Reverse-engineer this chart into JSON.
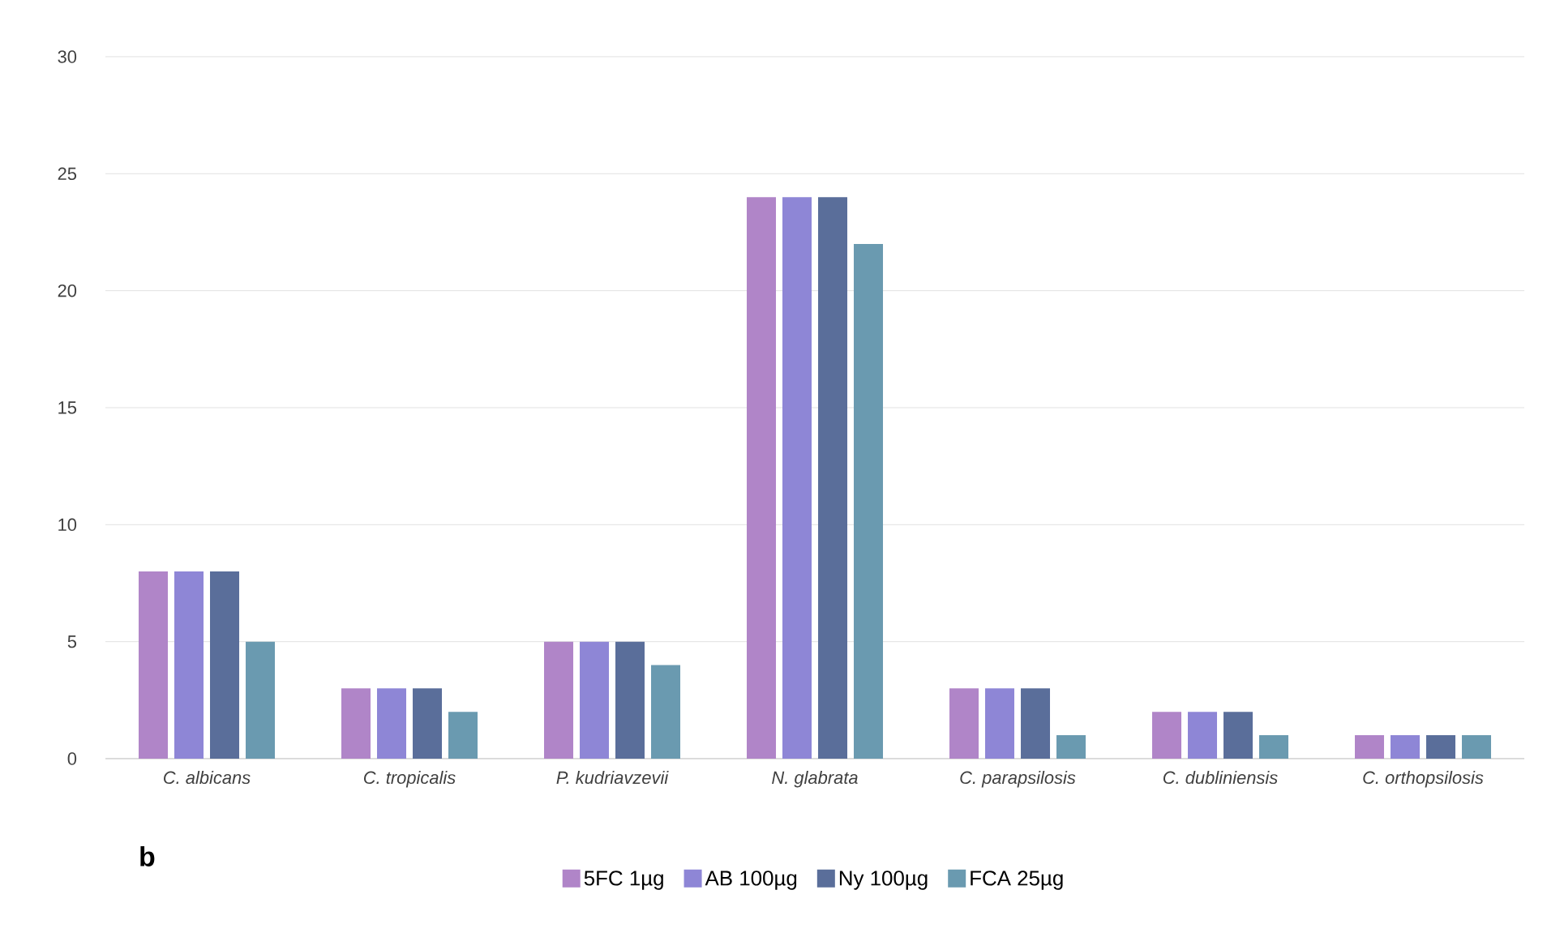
{
  "chart_data": {
    "type": "bar",
    "categories": [
      "C. albicans",
      "C. tropicalis",
      "P. kudriavzevii",
      "N. glabrata",
      "C. parapsilosis",
      "C. dubliniensis",
      "C. orthopsilosis"
    ],
    "series": [
      {
        "name": "5FC 1µg",
        "color": "#b085c8",
        "values": [
          8,
          3,
          5,
          24,
          3,
          2,
          1
        ]
      },
      {
        "name": "AB 100µg",
        "color": "#8e86d6",
        "values": [
          8,
          3,
          5,
          24,
          3,
          2,
          1
        ]
      },
      {
        "name": "Ny 100µg",
        "color": "#5a6e9a",
        "values": [
          8,
          3,
          5,
          24,
          3,
          2,
          1
        ]
      },
      {
        "name": "FCA 25µg",
        "color": "#6a9ab0",
        "values": [
          5,
          2,
          4,
          22,
          1,
          1,
          1
        ]
      }
    ],
    "ylim": [
      0,
      30
    ],
    "yticks": [
      0,
      5,
      10,
      15,
      20,
      25,
      30
    ],
    "grid": "y",
    "legend": "bottom",
    "annotations": [
      "b"
    ]
  }
}
